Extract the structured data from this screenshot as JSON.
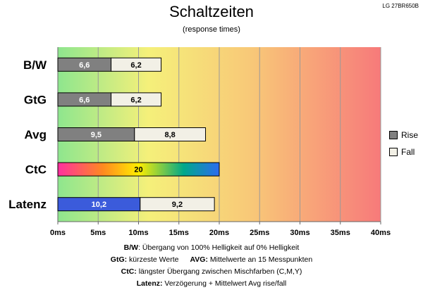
{
  "header": {
    "title": "Schaltzeiten",
    "subtitle": "(response times)",
    "model": "LG 27BR650B"
  },
  "legend": {
    "items": [
      {
        "label": "Rise",
        "color": "#808080"
      },
      {
        "label": "Fall",
        "color": "#f2f0e6"
      }
    ]
  },
  "notes": {
    "line1": {
      "key": "B/W",
      "text": ":  Übergang von 100% Helligkeit auf 0% Helligkeit"
    },
    "line2a": {
      "key": "GtG:",
      "text": " kürzeste  Werte"
    },
    "line2b": {
      "key": "AVG:",
      "text": " Mittelwerte  an 15 Messpunkten"
    },
    "line3": {
      "key": "CtC:",
      "text": " längster Übergang  zwischen Mischfarben  (C,M,Y)"
    },
    "line4": {
      "key": "Latenz:",
      "text": " Verzögerung  + Mittelwert  Avg rise/fall"
    }
  },
  "chart_data": {
    "type": "bar",
    "orientation": "horizontal",
    "stacked": true,
    "categories": [
      "B/W",
      "GtG",
      "Avg",
      "CtC",
      "Latenz"
    ],
    "series": [
      {
        "name": "Rise",
        "values": [
          6.6,
          6.6,
          9.5,
          20,
          10.2
        ],
        "labels": [
          "6,6",
          "6,6",
          "9,5",
          "20",
          "10,2"
        ]
      },
      {
        "name": "Fall",
        "values": [
          6.2,
          6.2,
          8.8,
          null,
          9.2
        ],
        "labels": [
          "6,2",
          "6,2",
          "8,8",
          "",
          "9,2"
        ]
      }
    ],
    "xlim": [
      0,
      40
    ],
    "xticks": [
      0,
      5,
      10,
      15,
      20,
      25,
      30,
      35,
      40
    ],
    "xtick_labels": [
      "0ms",
      "5ms",
      "10ms",
      "15ms",
      "20ms",
      "25ms",
      "30ms",
      "35ms",
      "40ms"
    ],
    "grid": "vertical",
    "background": "gradient green-yellow-red",
    "special_bar_colors": {
      "CtC": "rainbow",
      "Latenz": "#3b5bdb"
    },
    "legend_position": "right"
  }
}
